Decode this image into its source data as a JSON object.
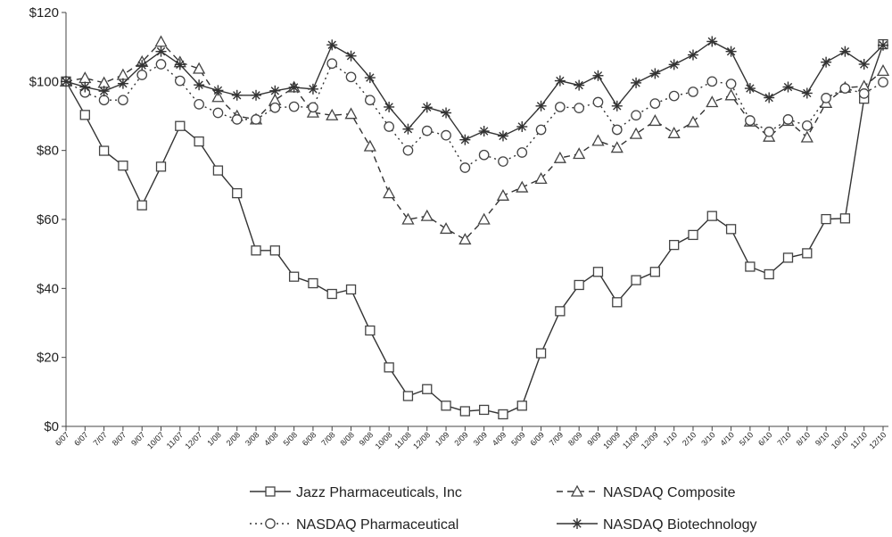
{
  "chart_data": {
    "type": "line",
    "title": "",
    "xlabel": "",
    "ylabel": "",
    "ylim": [
      0,
      120
    ],
    "y_ticks": [
      "$0",
      "$20",
      "$40",
      "$60",
      "$80",
      "$100",
      "$120"
    ],
    "y_tick_values": [
      0,
      20,
      40,
      60,
      80,
      100,
      120
    ],
    "grid": false,
    "legend_position": "bottom",
    "x": [
      "6/07",
      "6/07",
      "7/07",
      "8/07",
      "9/07",
      "10/07",
      "11/07",
      "12/07",
      "1/08",
      "2/08",
      "3/08",
      "4/08",
      "5/08",
      "6/08",
      "7/08",
      "8/08",
      "9/08",
      "10/08",
      "11/08",
      "12/08",
      "1/09",
      "2/09",
      "3/09",
      "4/09",
      "5/09",
      "6/09",
      "7/09",
      "8/09",
      "9/09",
      "10/09",
      "11/09",
      "12/09",
      "1/10",
      "2/10",
      "3/10",
      "4/10",
      "5/10",
      "6/10",
      "7/10",
      "8/10",
      "9/10",
      "10/10",
      "11/10",
      "12/10"
    ],
    "series": [
      {
        "name": "Jazz Pharmaceuticals, Inc",
        "style": "solid",
        "marker": "square",
        "values": [
          100,
          90.3,
          79.9,
          75.6,
          64.1,
          75.3,
          87.1,
          82.6,
          74.2,
          67.6,
          51.0,
          51.0,
          43.4,
          41.5,
          38.4,
          39.7,
          27.8,
          17.1,
          8.8,
          10.8,
          6.0,
          4.4,
          4.8,
          3.5,
          6.0,
          21.2,
          33.4,
          41.0,
          44.8,
          36.0,
          42.4,
          44.8,
          52.6,
          55.5,
          61.0,
          57.2,
          46.3,
          44.1,
          48.9,
          50.2,
          60.1,
          60.3,
          95.0,
          110.8
        ]
      },
      {
        "name": "NASDAQ Composite",
        "style": "dashed",
        "marker": "triangle",
        "values": [
          100,
          101.0,
          99.6,
          101.9,
          105.7,
          111.5,
          105.6,
          103.7,
          95.5,
          90.0,
          89.0,
          94.6,
          98.3,
          91.0,
          90.2,
          90.6,
          81.2,
          67.6,
          60.0,
          61.0,
          57.3,
          54.2,
          60.0,
          66.9,
          69.3,
          71.8,
          77.8,
          79.0,
          82.8,
          80.8,
          84.8,
          88.6,
          85.0,
          88.2,
          94.0,
          96.0,
          88.4,
          84.0,
          88.6,
          83.8,
          93.8,
          98.2,
          98.6,
          103.1
        ]
      },
      {
        "name": "NASDAQ Pharmaceutical",
        "style": "dotted",
        "marker": "circle",
        "values": [
          100,
          96.8,
          94.6,
          94.6,
          101.9,
          105.0,
          100.2,
          93.4,
          90.9,
          89.0,
          89.0,
          92.4,
          92.7,
          92.5,
          105.2,
          101.3,
          94.6,
          86.9,
          80.0,
          85.7,
          84.4,
          75.0,
          78.7,
          76.8,
          79.4,
          86.0,
          92.6,
          92.3,
          94.0,
          86.0,
          90.2,
          93.6,
          95.8,
          97.0,
          100.0,
          99.3,
          88.7,
          85.4,
          89.0,
          87.2,
          95.2,
          98.0,
          96.5,
          99.8
        ]
      },
      {
        "name": "NASDAQ Biotechnology",
        "style": "solid",
        "marker": "asterisk",
        "values": [
          100,
          98.4,
          97.2,
          99.4,
          104.7,
          108.7,
          104.9,
          99.0,
          97.4,
          96.0,
          96.0,
          97.3,
          98.3,
          97.8,
          110.6,
          107.4,
          101.1,
          92.6,
          86.2,
          92.5,
          90.9,
          83.1,
          85.6,
          84.2,
          86.9,
          92.9,
          100.2,
          98.9,
          101.7,
          92.9,
          99.6,
          102.3,
          104.9,
          107.7,
          111.6,
          108.7,
          98.0,
          95.3,
          98.4,
          96.6,
          105.6,
          108.7,
          105.0,
          110.5
        ]
      }
    ]
  }
}
